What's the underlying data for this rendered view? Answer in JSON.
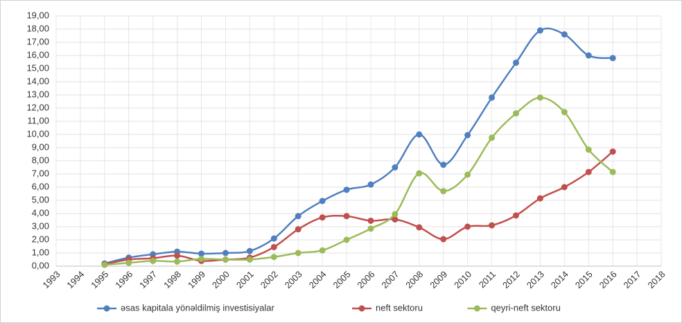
{
  "chart_data": {
    "type": "line",
    "categories": [
      "1993",
      "1994",
      "1995",
      "1996",
      "1997",
      "1998",
      "1999",
      "2000",
      "2001",
      "2002",
      "2003",
      "2004",
      "2005",
      "2006",
      "2007",
      "2008",
      "2009",
      "2010",
      "2011",
      "2012",
      "2013",
      "2014",
      "2015",
      "2016",
      "2017",
      "2018"
    ],
    "series": [
      {
        "name": "əsas kapitala yönəldilmiş investisiyalar",
        "color": "#4f7fbf",
        "values": [
          null,
          null,
          0.2,
          0.65,
          0.9,
          1.1,
          0.95,
          1.0,
          1.15,
          2.1,
          3.8,
          4.95,
          5.8,
          6.2,
          7.5,
          10.0,
          7.7,
          9.95,
          12.8,
          15.45,
          17.9,
          17.6,
          16.0,
          15.8,
          null,
          null
        ]
      },
      {
        "name": "neft sektoru",
        "color": "#c0504d",
        "values": [
          null,
          null,
          0.15,
          0.5,
          0.6,
          0.8,
          0.4,
          0.5,
          0.65,
          1.45,
          2.8,
          3.7,
          3.8,
          3.45,
          3.55,
          2.95,
          2.05,
          3.0,
          3.1,
          3.85,
          5.15,
          6.0,
          7.15,
          8.7,
          null,
          null
        ]
      },
      {
        "name": "qeyri-neft sektoru",
        "color": "#9bbb59",
        "values": [
          null,
          null,
          0.1,
          0.25,
          0.4,
          0.35,
          0.55,
          0.5,
          0.5,
          0.7,
          1.0,
          1.2,
          2.0,
          2.85,
          3.95,
          7.05,
          5.7,
          6.95,
          9.75,
          11.6,
          12.8,
          11.7,
          8.85,
          7.15,
          null,
          null
        ]
      }
    ],
    "ylim": [
      0,
      19
    ],
    "yticks": [
      {
        "value": 0,
        "label": "0,00"
      },
      {
        "value": 1,
        "label": "1,00"
      },
      {
        "value": 2,
        "label": "2,00"
      },
      {
        "value": 3,
        "label": "3,00"
      },
      {
        "value": 4,
        "label": "4,00"
      },
      {
        "value": 5,
        "label": "5,00"
      },
      {
        "value": 6,
        "label": "6,00"
      },
      {
        "value": 7,
        "label": "7,00"
      },
      {
        "value": 8,
        "label": "8,00"
      },
      {
        "value": 9,
        "label": "9,00"
      },
      {
        "value": 10,
        "label": "10,00"
      },
      {
        "value": 11,
        "label": "11,00"
      },
      {
        "value": 12,
        "label": "12,00"
      },
      {
        "value": 13,
        "label": "13,00"
      },
      {
        "value": 14,
        "label": "14,00"
      },
      {
        "value": 15,
        "label": "15,00"
      },
      {
        "value": 16,
        "label": "16,00"
      },
      {
        "value": 17,
        "label": "17,00"
      },
      {
        "value": 18,
        "label": "18,00"
      },
      {
        "value": 19,
        "label": "19,00"
      }
    ],
    "grid": true,
    "legend": "bottom"
  }
}
